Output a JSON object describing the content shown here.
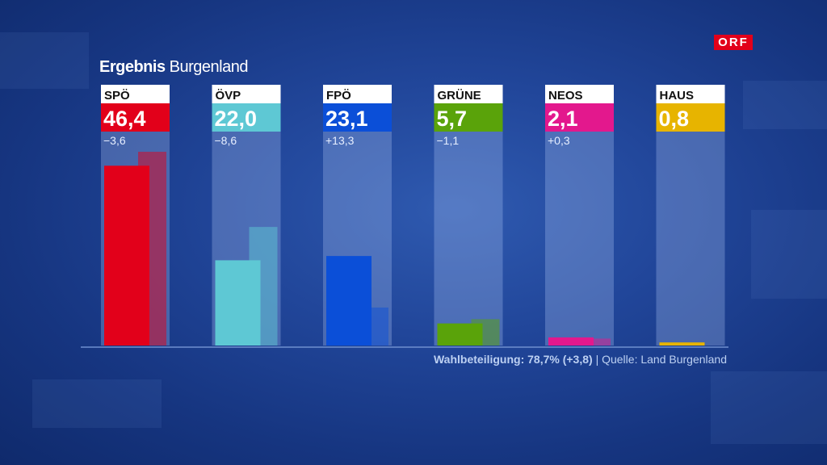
{
  "header": {
    "title_strong": "Ergebnis",
    "title_light": "Burgenland",
    "logo": "ORF"
  },
  "footer": {
    "turnout": "Wahlbeteiligung: 78,7% (+3,8)",
    "separator": "|",
    "source": "Quelle: Land Burgenland"
  },
  "chart_data": {
    "type": "bar",
    "categories": [
      "SPÖ",
      "ÖVP",
      "FPÖ",
      "GRÜNE",
      "NEOS",
      "HAUS"
    ],
    "series": [
      {
        "values": [
          46.4,
          22.0,
          23.1,
          5.7,
          2.1,
          0.8
        ]
      },
      {
        "values": [
          50.0,
          30.6,
          9.8,
          6.8,
          1.8,
          null
        ]
      }
    ],
    "value_labels": [
      "46,4",
      "22,0",
      "23,1",
      "5,7",
      "2,1",
      "0,8"
    ],
    "change_labels": [
      "−3,6",
      "−8,6",
      "+13,3",
      "−1,1",
      "+0,3",
      ""
    ],
    "colors": [
      "#e2001a",
      "#5ec8d4",
      "#0b4fd8",
      "#5aa30a",
      "#e3188d",
      "#e7b400"
    ],
    "ylim": [
      0,
      55
    ],
    "grid": false
  }
}
